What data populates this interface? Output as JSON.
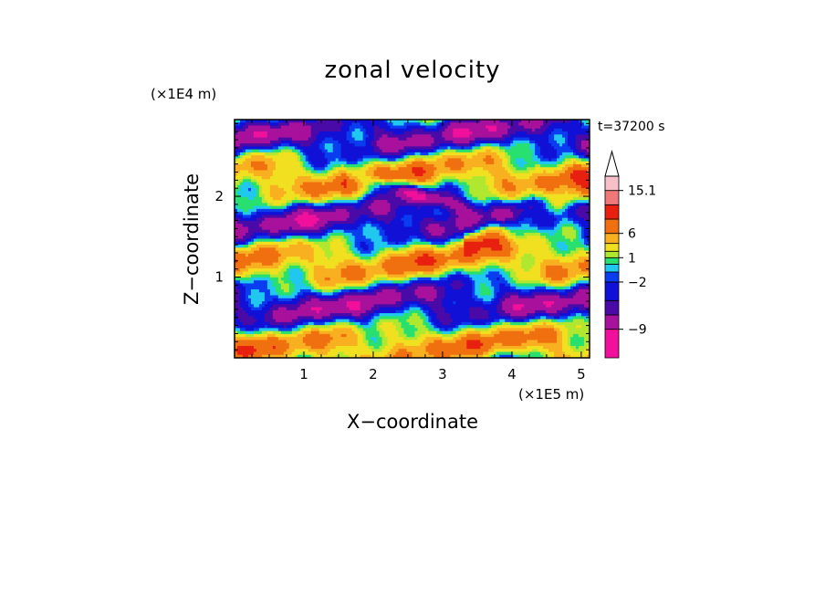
{
  "chart_data": {
    "type": "heatmap",
    "title": "zonal velocity",
    "xlabel": "X−coordinate",
    "ylabel": "Z−coordinate",
    "x_scale_label": "(×1E5 m)",
    "y_scale_label": "(×1E4 m)",
    "time_label": "t=37200 s",
    "xlim": [
      0,
      5.12
    ],
    "ylim": [
      0,
      2.95
    ],
    "x_ticks": [
      1,
      2,
      3,
      4,
      5
    ],
    "y_ticks": [
      1,
      2
    ],
    "colorbar": {
      "levels": [
        -12,
        -9,
        -6,
        -4,
        -2,
        -1,
        0,
        1,
        2,
        4,
        6,
        9,
        12,
        15.1
      ],
      "labels": [
        {
          "value": 15.1,
          "text": "15.1"
        },
        {
          "value": 6,
          "text": "6"
        },
        {
          "value": 1,
          "text": "1"
        },
        {
          "value": -2,
          "text": "−2"
        },
        {
          "value": -9,
          "text": "−9"
        }
      ],
      "colors": [
        "#f0109c",
        "#a8119c",
        "#4a0aa8",
        "#1010d6",
        "#0a3cf0",
        "#20c8f0",
        "#28e070",
        "#b0e830",
        "#f0e020",
        "#f8b020",
        "#f07010",
        "#e82010",
        "#f07878",
        "#f8c0c8"
      ],
      "extend_max": true
    },
    "description_note": ""
  }
}
